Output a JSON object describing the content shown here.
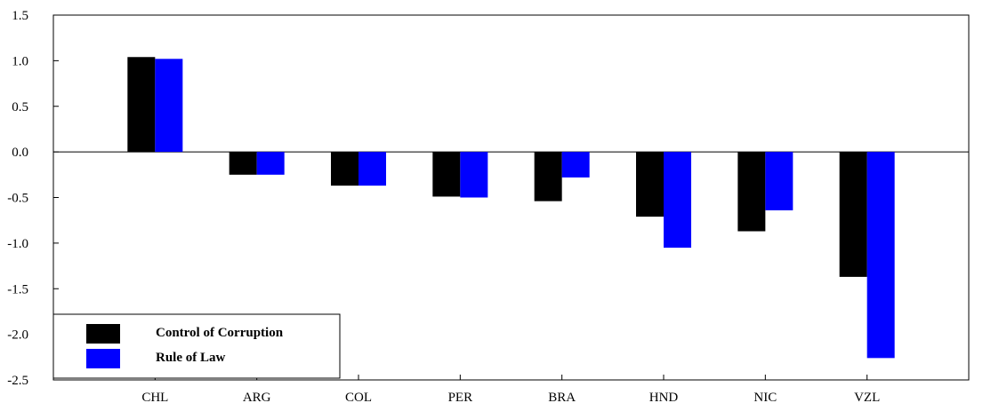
{
  "chart_data": {
    "type": "bar",
    "title": "",
    "xlabel": "",
    "ylabel": "",
    "categories": [
      "CHL",
      "ARG",
      "COL",
      "PER",
      "BRA",
      "HND",
      "NIC",
      "VZL"
    ],
    "series": [
      {
        "name": "Control of Corruption",
        "color": "#000000",
        "values": [
          1.04,
          -0.25,
          -0.37,
          -0.49,
          -0.54,
          -0.71,
          -0.87,
          -1.37
        ]
      },
      {
        "name": "Rule of Law",
        "color": "#0000ff",
        "values": [
          1.02,
          -0.25,
          -0.37,
          -0.5,
          -0.28,
          -1.05,
          -0.64,
          -2.26
        ]
      }
    ],
    "ylim": [
      -2.5,
      1.5
    ],
    "yticks": [
      1.5,
      1.0,
      0.5,
      0.0,
      -0.5,
      -1.0,
      -1.5,
      -2.0,
      -2.5
    ],
    "ytick_labels": [
      "1.5",
      "1.0",
      "0.5",
      "0.0",
      "-0.5",
      "-1.0",
      "-1.5",
      "-2.0",
      "-2.5"
    ],
    "grid": false,
    "zero_line": true,
    "legend_position": "bottom-left"
  }
}
